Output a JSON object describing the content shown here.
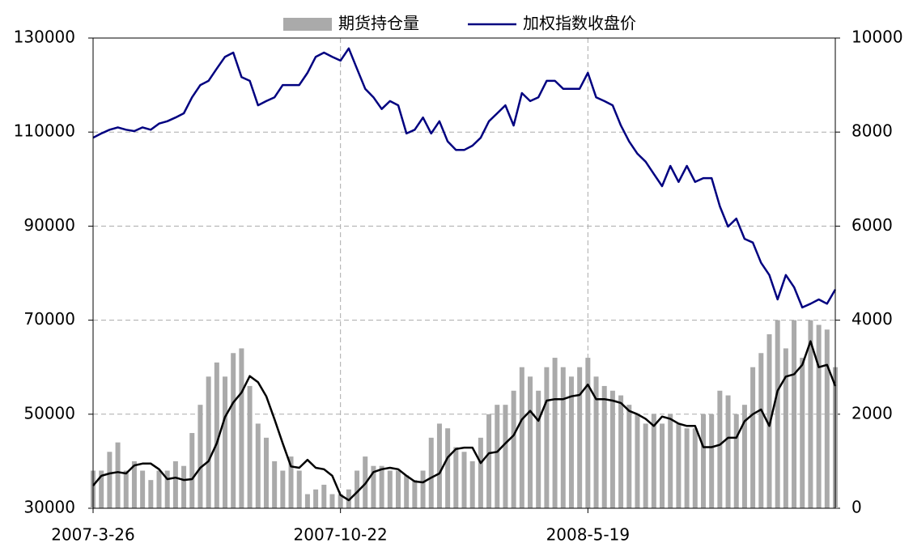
{
  "chart_data": {
    "type": "bar-line",
    "categories": [
      "2007-3-26",
      null,
      null,
      null,
      null,
      null,
      null,
      null,
      null,
      null,
      null,
      null,
      null,
      null,
      null,
      null,
      null,
      null,
      null,
      null,
      null,
      null,
      null,
      null,
      null,
      null,
      null,
      null,
      null,
      null,
      "2007-10-22",
      null,
      null,
      null,
      null,
      null,
      null,
      null,
      null,
      null,
      null,
      null,
      null,
      null,
      null,
      null,
      null,
      null,
      null,
      null,
      null,
      null,
      null,
      null,
      null,
      null,
      null,
      null,
      null,
      null,
      "2008-5-19",
      null,
      null,
      null,
      null,
      null,
      null,
      null,
      null,
      null,
      null,
      null,
      null,
      null,
      null,
      null,
      null,
      null,
      null,
      null,
      null,
      null,
      null,
      null,
      null,
      null,
      null,
      null,
      null,
      null,
      null
    ],
    "series": [
      {
        "name": "期货持仓量",
        "type": "bar",
        "color": "#aaaaaa",
        "axis": "y",
        "values": [
          38000,
          38000,
          42000,
          44000,
          38000,
          40000,
          38000,
          36000,
          38000,
          38000,
          40000,
          39000,
          46000,
          52000,
          58000,
          61000,
          58000,
          63000,
          64000,
          56000,
          48000,
          45000,
          40000,
          38000,
          41000,
          38000,
          33000,
          34000,
          35000,
          33000,
          33000,
          34000,
          38000,
          41000,
          39000,
          39000,
          38000,
          38000,
          37000,
          36000,
          38000,
          45000,
          48000,
          47000,
          43000,
          42000,
          40000,
          45000,
          50000,
          52000,
          52000,
          55000,
          60000,
          58000,
          55000,
          60000,
          62000,
          60000,
          58000,
          60000,
          62000,
          58000,
          56000,
          55000,
          54000,
          52000,
          50000,
          48000,
          50000,
          48000,
          50000,
          48000,
          47000,
          47000,
          50000,
          50000,
          55000,
          54000,
          50000,
          52000,
          60000,
          63000,
          67000,
          70000,
          64000,
          70000,
          62000,
          70000,
          69000,
          68000,
          60000
        ]
      },
      {
        "type": "line",
        "color": "#000000",
        "axis": "y",
        "values": [
          34800,
          36900,
          37400,
          37700,
          37400,
          39100,
          39500,
          39500,
          38300,
          36200,
          36500,
          36000,
          36200,
          38600,
          40000,
          43800,
          49400,
          52500,
          54600,
          58100,
          56800,
          53800,
          48900,
          43800,
          38900,
          38600,
          40300,
          38600,
          38300,
          36900,
          32800,
          31700,
          33400,
          35200,
          37700,
          38300,
          38600,
          38300,
          36900,
          35700,
          35500,
          36500,
          37400,
          40800,
          42600,
          42900,
          42900,
          39600,
          41700,
          42000,
          43800,
          45500,
          48900,
          50700,
          48600,
          52900,
          53200,
          53200,
          53800,
          54100,
          56300,
          53200,
          53200,
          52900,
          52400,
          50700,
          50000,
          49000,
          47500,
          49500,
          49000,
          48000,
          47500,
          47500,
          43000,
          43000,
          43500,
          45000,
          45000,
          48500,
          50000,
          51000,
          47500,
          55000,
          58000,
          58500,
          60500,
          65500,
          60000,
          60500,
          56000
        ]
      },
      {
        "name": "加权指数收盘价",
        "type": "line",
        "color": "#000080",
        "axis": "y2",
        "values": [
          7880,
          7970,
          8050,
          8100,
          8050,
          8020,
          8100,
          8050,
          8180,
          8230,
          8310,
          8400,
          8740,
          9000,
          9090,
          9350,
          9600,
          9690,
          9170,
          9090,
          8570,
          8660,
          8740,
          9000,
          9000,
          9000,
          9260,
          9600,
          9690,
          9600,
          9520,
          9780,
          9350,
          8920,
          8740,
          8490,
          8660,
          8570,
          7970,
          8050,
          8310,
          7970,
          8230,
          7800,
          7620,
          7620,
          7710,
          7880,
          8230,
          8400,
          8570,
          8140,
          8830,
          8660,
          8740,
          9090,
          9090,
          8920,
          8920,
          8920,
          9260,
          8740,
          8660,
          8570,
          8140,
          7800,
          7540,
          7370,
          7110,
          6850,
          7280,
          6940,
          7280,
          6940,
          7020,
          7020,
          6420,
          5990,
          6160,
          5730,
          5650,
          5220,
          4960,
          4440,
          4960,
          4700,
          4270,
          4350,
          4440,
          4350,
          4650
        ]
      }
    ],
    "ylim": [
      30000,
      130000
    ],
    "yticks": [
      30000,
      50000,
      70000,
      90000,
      110000,
      130000
    ],
    "y2lim": [
      0,
      10000
    ],
    "y2ticks": [
      0,
      2000,
      4000,
      6000,
      8000,
      10000
    ],
    "grid": true,
    "legend": "top"
  }
}
